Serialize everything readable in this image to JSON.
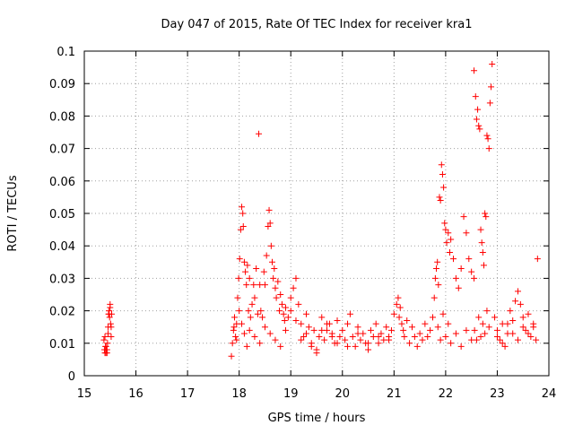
{
  "chart_data": {
    "type": "scatter",
    "title": "Day 047 of 2015, Rate Of TEC Index for receiver kra1",
    "xlabel": "GPS time / hours",
    "ylabel": "ROTI / TECUs",
    "xlim": [
      15,
      24
    ],
    "ylim": [
      0,
      0.1
    ],
    "xticks": [
      "15",
      "16",
      "17",
      "18",
      "19",
      "20",
      "21",
      "22",
      "23",
      "24"
    ],
    "yticks": [
      "0",
      "0.01",
      "0.02",
      "0.03",
      "0.04",
      "0.05",
      "0.06",
      "0.07",
      "0.08",
      "0.09",
      "0.1"
    ],
    "grid": true,
    "marker": "plus",
    "marker_color": "#ff0000",
    "series": [
      {
        "name": "ROTI",
        "x": [
          15.38,
          15.39,
          15.4,
          15.41,
          15.42,
          15.43,
          15.44,
          15.45,
          15.46,
          15.47,
          15.48,
          15.49,
          15.5,
          15.51,
          15.52,
          15.53,
          15.4,
          15.42,
          15.44,
          15.46,
          15.48,
          15.5,
          15.52,
          17.85,
          17.87,
          17.89,
          17.91,
          17.93,
          17.95,
          17.97,
          17.99,
          18.01,
          18.03,
          18.05,
          18.07,
          18.08,
          18.1,
          18.12,
          18.14,
          18.16,
          18.18,
          18.2,
          18.22,
          18.25,
          18.28,
          18.3,
          18.33,
          18.36,
          18.38,
          18.4,
          18.42,
          18.45,
          18.48,
          18.5,
          18.53,
          18.56,
          18.58,
          18.6,
          18.62,
          18.64,
          18.66,
          18.68,
          18.7,
          18.72,
          18.75,
          18.78,
          18.8,
          18.83,
          18.86,
          18.88,
          18.9,
          17.9,
          17.95,
          18.0,
          18.05,
          18.1,
          18.15,
          18.2,
          18.3,
          18.4,
          18.5,
          18.6,
          18.7,
          18.8,
          18.9,
          18.95,
          19.0,
          19.05,
          19.1,
          19.15,
          19.2,
          19.25,
          19.3,
          19.35,
          19.4,
          19.45,
          19.5,
          19.55,
          19.6,
          19.65,
          19.7,
          19.75,
          19.8,
          19.85,
          19.9,
          19.95,
          19.0,
          19.1,
          19.2,
          19.3,
          19.4,
          19.5,
          19.6,
          19.7,
          19.8,
          19.9,
          20.0,
          20.05,
          20.1,
          20.15,
          20.2,
          20.25,
          20.3,
          20.35,
          20.4,
          20.45,
          20.5,
          20.55,
          20.6,
          20.65,
          20.7,
          20.75,
          20.8,
          20.85,
          20.9,
          20.95,
          20.1,
          20.3,
          20.5,
          20.7,
          20.9,
          21.0,
          21.05,
          21.08,
          21.1,
          21.12,
          21.15,
          21.18,
          21.2,
          21.25,
          21.3,
          21.35,
          21.4,
          21.45,
          21.5,
          21.55,
          21.6,
          21.65,
          21.7,
          21.75,
          21.78,
          21.8,
          21.82,
          21.84,
          21.86,
          21.88,
          21.9,
          21.92,
          21.94,
          21.96,
          21.98,
          22.0,
          22.02,
          22.05,
          22.08,
          22.1,
          22.15,
          22.2,
          22.25,
          22.3,
          22.35,
          22.4,
          22.45,
          22.5,
          22.55,
          21.85,
          21.9,
          21.95,
          22.0,
          22.05,
          22.1,
          22.2,
          22.3,
          22.4,
          22.5,
          22.55,
          22.58,
          22.6,
          22.62,
          22.64,
          22.66,
          22.68,
          22.7,
          22.72,
          22.74,
          22.76,
          22.78,
          22.8,
          22.82,
          22.84,
          22.86,
          22.88,
          22.9,
          22.56,
          22.6,
          22.64,
          22.68,
          22.72,
          22.76,
          22.8,
          22.84,
          22.95,
          23.0,
          23.05,
          23.1,
          23.15,
          23.2,
          23.25,
          23.3,
          23.35,
          23.4,
          23.45,
          23.5,
          23.55,
          23.6,
          23.65,
          23.7,
          23.75,
          23.0,
          23.1,
          23.2,
          23.3,
          23.4,
          23.5,
          23.6,
          23.7,
          23.78
        ],
        "y": [
          0.011,
          0.008,
          0.007,
          0.009,
          0.007,
          0.008,
          0.007,
          0.01,
          0.015,
          0.019,
          0.02,
          0.018,
          0.022,
          0.016,
          0.012,
          0.019,
          0.012,
          0.009,
          0.008,
          0.013,
          0.019,
          0.021,
          0.015,
          0.006,
          0.01,
          0.014,
          0.018,
          0.012,
          0.016,
          0.024,
          0.03,
          0.036,
          0.045,
          0.052,
          0.05,
          0.046,
          0.035,
          0.032,
          0.028,
          0.034,
          0.02,
          0.03,
          0.018,
          0.022,
          0.028,
          0.024,
          0.033,
          0.019,
          0.0745,
          0.028,
          0.02,
          0.018,
          0.032,
          0.028,
          0.037,
          0.046,
          0.051,
          0.047,
          0.04,
          0.035,
          0.03,
          0.033,
          0.027,
          0.024,
          0.029,
          0.02,
          0.025,
          0.022,
          0.019,
          0.017,
          0.021,
          0.015,
          0.011,
          0.02,
          0.016,
          0.013,
          0.009,
          0.014,
          0.012,
          0.01,
          0.015,
          0.013,
          0.011,
          0.009,
          0.014,
          0.018,
          0.024,
          0.027,
          0.03,
          0.022,
          0.016,
          0.012,
          0.019,
          0.015,
          0.01,
          0.014,
          0.008,
          0.012,
          0.018,
          0.011,
          0.014,
          0.016,
          0.013,
          0.01,
          0.017,
          0.012,
          0.02,
          0.017,
          0.011,
          0.013,
          0.009,
          0.007,
          0.014,
          0.016,
          0.012,
          0.01,
          0.014,
          0.011,
          0.016,
          0.019,
          0.012,
          0.009,
          0.015,
          0.011,
          0.013,
          0.01,
          0.008,
          0.014,
          0.012,
          0.016,
          0.01,
          0.013,
          0.011,
          0.015,
          0.012,
          0.014,
          0.009,
          0.013,
          0.01,
          0.012,
          0.011,
          0.019,
          0.022,
          0.024,
          0.018,
          0.021,
          0.016,
          0.014,
          0.012,
          0.017,
          0.01,
          0.015,
          0.012,
          0.009,
          0.013,
          0.011,
          0.016,
          0.012,
          0.014,
          0.018,
          0.024,
          0.03,
          0.033,
          0.035,
          0.028,
          0.055,
          0.054,
          0.065,
          0.062,
          0.058,
          0.047,
          0.045,
          0.041,
          0.044,
          0.038,
          0.042,
          0.036,
          0.03,
          0.027,
          0.033,
          0.049,
          0.044,
          0.036,
          0.032,
          0.03,
          0.015,
          0.011,
          0.019,
          0.012,
          0.016,
          0.01,
          0.013,
          0.009,
          0.014,
          0.011,
          0.094,
          0.086,
          0.079,
          0.082,
          0.077,
          0.076,
          0.045,
          0.041,
          0.038,
          0.034,
          0.05,
          0.049,
          0.074,
          0.073,
          0.07,
          0.084,
          0.089,
          0.096,
          0.014,
          0.011,
          0.018,
          0.012,
          0.016,
          0.013,
          0.02,
          0.015,
          0.018,
          0.014,
          0.011,
          0.016,
          0.009,
          0.013,
          0.02,
          0.017,
          0.023,
          0.026,
          0.022,
          0.018,
          0.014,
          0.019,
          0.012,
          0.015,
          0.011,
          0.012,
          0.01,
          0.016,
          0.013,
          0.011,
          0.015,
          0.013,
          0.016,
          0.036
        ]
      }
    ]
  }
}
